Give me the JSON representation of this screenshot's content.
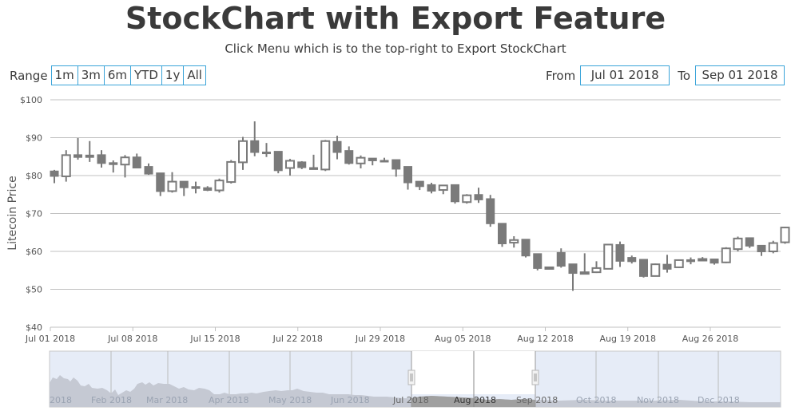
{
  "header": {
    "title": "StockChart with Export Feature",
    "subtitle": "Click Menu which is to the top-right to Export StockChart"
  },
  "range_selector": {
    "label": "Range",
    "buttons": [
      "1m",
      "3m",
      "6m",
      "YTD",
      "1y",
      "All"
    ]
  },
  "date_inputs": {
    "from_label": "From",
    "from_value": "Jul 01 2018",
    "to_label": "To",
    "to_value": "Sep 01 2018"
  },
  "colors": {
    "candle": "#7a7a7a",
    "gridline": "#c0c0c0",
    "input_border": "#3aa4d9",
    "navigator_fill": "#e6ecf7",
    "navigator_area": "#c5c9d3",
    "navigator_selected_area": "#a0a0a0"
  },
  "navigator": {
    "labels": [
      "2018",
      "Feb 2018",
      "Mar 2018",
      "Apr 2018",
      "May 2018",
      "Jun 2018",
      "Jul 2018",
      "Aug 2018",
      "Sep 2018",
      "Oct 2018",
      "Nov 2018",
      "Dec 2018"
    ]
  },
  "chart_data": {
    "type": "candlestick",
    "title": "StockChart with Export Feature",
    "subtitle": "Click Menu which is to the top-right to Export StockChart",
    "xlabel": "",
    "ylabel": "Litecoin Price",
    "ylim": [
      40,
      100
    ],
    "yticks": [
      "$40",
      "$50",
      "$60",
      "$70",
      "$80",
      "$90",
      "$100"
    ],
    "xticks": [
      "Jul 01 2018",
      "Jul 08 2018",
      "Jul 15 2018",
      "Jul 22 2018",
      "Jul 29 2018",
      "Aug 05 2018",
      "Aug 12 2018",
      "Aug 19 2018",
      "Aug 26 2018"
    ],
    "grid": true,
    "x_range": [
      "Jul 01 2018",
      "Sep 01 2018"
    ],
    "columns": [
      "date",
      "open",
      "high",
      "low",
      "close"
    ],
    "values": [
      [
        "Jul 01",
        81.2,
        81.5,
        78.0,
        79.8
      ],
      [
        "Jul 02",
        79.8,
        86.7,
        78.4,
        85.4
      ],
      [
        "Jul 03",
        85.5,
        89.9,
        84.2,
        84.8
      ],
      [
        "Jul 04",
        85.4,
        89.1,
        83.6,
        84.8
      ],
      [
        "Jul 05",
        85.5,
        86.7,
        82.1,
        83.2
      ],
      [
        "Jul 06",
        83.4,
        84.0,
        80.8,
        82.9
      ],
      [
        "Jul 07",
        82.9,
        85.4,
        79.5,
        84.8
      ],
      [
        "Jul 08",
        84.9,
        85.8,
        82.0,
        82.0
      ],
      [
        "Jul 09",
        82.4,
        83.2,
        80.2,
        80.4
      ],
      [
        "Jul 10",
        80.7,
        80.7,
        74.6,
        75.8
      ],
      [
        "Jul 11",
        75.9,
        80.9,
        75.5,
        78.4
      ],
      [
        "Jul 12",
        78.5,
        78.5,
        74.6,
        76.8
      ],
      [
        "Jul 13",
        77.1,
        78.4,
        75.3,
        76.6
      ],
      [
        "Jul 14",
        76.8,
        77.2,
        75.9,
        76.1
      ],
      [
        "Jul 15",
        76.1,
        79.2,
        75.5,
        78.7
      ],
      [
        "Jul 16",
        78.3,
        84.1,
        77.9,
        83.6
      ],
      [
        "Jul 17",
        83.5,
        90.2,
        81.5,
        89.1
      ],
      [
        "Jul 18",
        89.2,
        94.3,
        85.1,
        86.1
      ],
      [
        "Jul 19",
        86.2,
        88.6,
        84.9,
        86.1
      ],
      [
        "Jul 20",
        86.4,
        86.4,
        80.6,
        81.3
      ],
      [
        "Jul 21",
        82.0,
        84.4,
        80.0,
        83.9
      ],
      [
        "Jul 22",
        83.6,
        83.8,
        81.7,
        82.1
      ],
      [
        "Jul 23",
        82.1,
        85.5,
        81.6,
        81.6
      ],
      [
        "Jul 24",
        81.6,
        89.4,
        81.2,
        89.1
      ],
      [
        "Jul 25",
        89.0,
        90.5,
        84.3,
        86.1
      ],
      [
        "Jul 26",
        86.6,
        87.7,
        82.9,
        83.2
      ],
      [
        "Jul 27",
        83.2,
        85.3,
        81.9,
        84.7
      ],
      [
        "Jul 28",
        84.6,
        84.6,
        82.7,
        83.9
      ],
      [
        "Jul 29",
        84.0,
        84.7,
        83.5,
        84.0
      ],
      [
        "Jul 30",
        84.2,
        84.2,
        79.7,
        81.7
      ],
      [
        "Jul 31",
        82.4,
        82.4,
        76.3,
        78.1
      ],
      [
        "Aug 01",
        78.5,
        78.5,
        76.2,
        77.1
      ],
      [
        "Aug 02",
        77.6,
        78.1,
        75.3,
        75.9
      ],
      [
        "Aug 03",
        76.2,
        77.4,
        75.1,
        77.4
      ],
      [
        "Aug 04",
        77.6,
        77.6,
        72.6,
        73.1
      ],
      [
        "Aug 05",
        73.0,
        75.1,
        72.6,
        74.8
      ],
      [
        "Aug 06",
        75.0,
        76.8,
        72.8,
        73.6
      ],
      [
        "Aug 07",
        73.9,
        74.9,
        66.5,
        67.3
      ],
      [
        "Aug 08",
        67.4,
        67.4,
        61.2,
        62.0
      ],
      [
        "Aug 09",
        62.3,
        64.0,
        61.0,
        63.0
      ],
      [
        "Aug 10",
        63.2,
        63.2,
        58.4,
        58.8
      ],
      [
        "Aug 11",
        59.4,
        59.4,
        55.0,
        55.5
      ],
      [
        "Aug 12",
        55.7,
        55.9,
        55.6,
        55.8
      ],
      [
        "Aug 13",
        59.7,
        60.8,
        55.7,
        56.1
      ],
      [
        "Aug 14",
        56.7,
        56.7,
        49.6,
        54.2
      ],
      [
        "Aug 15",
        54.4,
        59.5,
        54.2,
        54.5
      ],
      [
        "Aug 16",
        54.5,
        57.4,
        54.3,
        55.6
      ],
      [
        "Aug 17",
        55.4,
        61.9,
        55.4,
        61.8
      ],
      [
        "Aug 18",
        61.8,
        62.6,
        55.9,
        57.4
      ],
      [
        "Aug 19",
        58.4,
        58.9,
        56.8,
        57.3
      ],
      [
        "Aug 20",
        57.9,
        58.0,
        53.1,
        53.4
      ],
      [
        "Aug 21",
        53.5,
        56.8,
        53.5,
        56.6
      ],
      [
        "Aug 22",
        56.6,
        59.1,
        54.4,
        55.3
      ],
      [
        "Aug 23",
        55.8,
        57.9,
        55.6,
        57.7
      ],
      [
        "Aug 24",
        57.8,
        58.4,
        56.6,
        57.3
      ],
      [
        "Aug 25",
        57.9,
        58.5,
        57.6,
        58.0
      ],
      [
        "Aug 26",
        58.0,
        58.0,
        56.5,
        56.9
      ],
      [
        "Aug 27",
        57.1,
        61.1,
        56.9,
        60.8
      ],
      [
        "Aug 28",
        60.6,
        63.9,
        60.0,
        63.4
      ],
      [
        "Aug 29",
        63.6,
        63.6,
        60.9,
        61.4
      ],
      [
        "Aug 30",
        61.6,
        61.6,
        58.8,
        59.9
      ],
      [
        "Aug 31",
        60.0,
        62.8,
        59.5,
        62.2
      ],
      [
        "Sep 01",
        62.4,
        66.5,
        62.0,
        66.3
      ]
    ]
  }
}
